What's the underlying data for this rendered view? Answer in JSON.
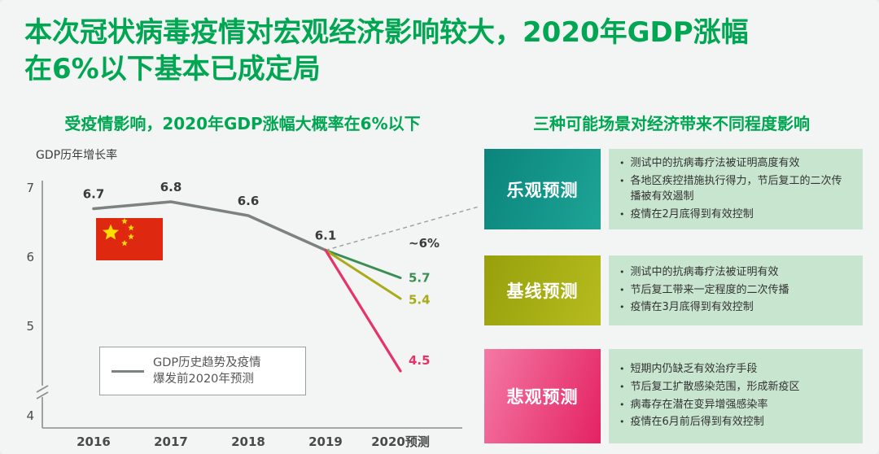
{
  "header": {
    "title_line1": "本次冠状病毒疫情对宏观经济影响较大，2020年GDP涨幅",
    "title_line2": "在6%以下基本已成定局"
  },
  "left": {
    "subtitle": "受疫情影响，2020年GDP涨幅大概率在6%以下",
    "axis_title": "GDP历年增长率",
    "legend_text": "GDP历史趋势及疫情\n爆发前2020年预测"
  },
  "right": {
    "subtitle": "三种可能场景对经济带来不同程度影响",
    "scenarios": [
      {
        "label": "乐观预测",
        "color_from": "#0b857c",
        "color_to": "#1da496",
        "bullets": [
          "测试中的抗病毒疗法被证明高度有效",
          "各地区疾控措施执行得力，节后复工的二次传播被有效遏制",
          "疫情在2月底得到有效控制"
        ]
      },
      {
        "label": "基线预测",
        "color_from": "#97a00c",
        "color_to": "#b6bc1e",
        "bullets": [
          "测试中的抗病毒疗法被证明有效",
          "节后复工带来一定程度的二次传播",
          "疫情在3月底得到有效控制"
        ]
      },
      {
        "label": "悲观预测",
        "color_from": "#f479a4",
        "color_to": "#e42263",
        "bullets": [
          "短期内仍缺乏有效治疗手段",
          "节后复工扩散感染范围，形成新疫区",
          "病毒存在潜在变异增强感染率",
          "疫情在6月前后得到有效控制"
        ]
      }
    ]
  },
  "chart_data": {
    "type": "line",
    "title": "受疫情影响，2020年GDP涨幅大概率在6%以下",
    "ylabel": "GDP历年增长率",
    "x": [
      "2016",
      "2017",
      "2018",
      "2019",
      "2020预测"
    ],
    "ylim": [
      4,
      7
    ],
    "yticks": [
      7,
      6,
      5,
      4
    ],
    "axis_break_below": 5,
    "series": [
      {
        "name": "GDP历史趋势及疫情爆发前2020年预测",
        "color": "#7c8280",
        "width": 3.5,
        "values": [
          6.7,
          6.8,
          6.6,
          6.1,
          null
        ]
      },
      {
        "name": "乐观预测",
        "color": "#3d8e52",
        "width": 3,
        "values": [
          null,
          null,
          null,
          6.1,
          5.7
        ]
      },
      {
        "name": "基线预测",
        "color": "#a9ab18",
        "width": 3,
        "values": [
          null,
          null,
          null,
          6.1,
          5.4
        ]
      },
      {
        "name": "悲观预测",
        "color": "#e6336a",
        "width": 3.2,
        "values": [
          null,
          null,
          null,
          6.1,
          4.5
        ]
      }
    ],
    "point_labels": [
      {
        "label": "6.7",
        "xi": 0,
        "v": 6.7,
        "pos": "above",
        "color": "#3a3a3a"
      },
      {
        "label": "6.8",
        "xi": 1,
        "v": 6.8,
        "pos": "above",
        "color": "#3a3a3a"
      },
      {
        "label": "6.6",
        "xi": 2,
        "v": 6.6,
        "pos": "above",
        "color": "#3a3a3a"
      },
      {
        "label": "6.1",
        "xi": 3,
        "v": 6.1,
        "pos": "above",
        "color": "#3a3a3a"
      },
      {
        "label": "~6%",
        "xi": 4,
        "v": 6.2,
        "pos": "right",
        "color": "#3a3a3a"
      },
      {
        "label": "5.7",
        "xi": 4,
        "v": 5.7,
        "pos": "right",
        "color": "#3d8e52"
      },
      {
        "label": "5.4",
        "xi": 4,
        "v": 5.38,
        "pos": "right",
        "color": "#a9ab18"
      },
      {
        "label": "4.5",
        "xi": 4,
        "v": 4.62,
        "pos": "right",
        "color": "#e6336a"
      }
    ],
    "dashed_projection": {
      "from_xi": 3,
      "from_v": 6.1,
      "color": "#9aa0a0"
    },
    "flag": {
      "field_color": "#de2910",
      "star_color": "#ffde00"
    },
    "legend": "GDP历史趋势及疫情爆发前2020年预测",
    "grid": false,
    "legend_position": "lower-left"
  }
}
